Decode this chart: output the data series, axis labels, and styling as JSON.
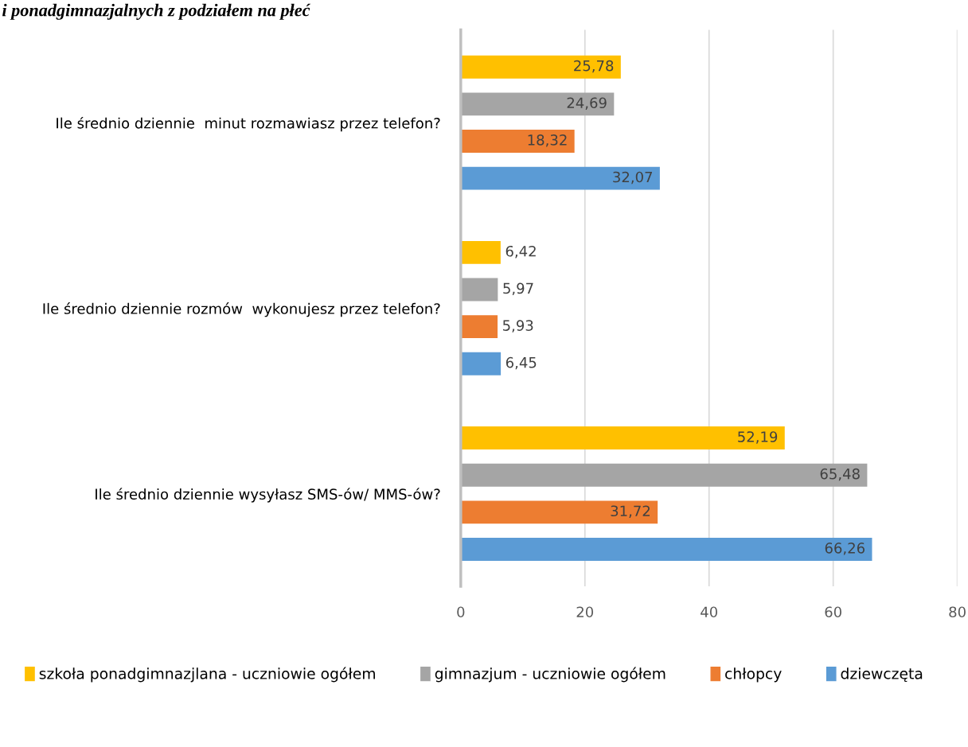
{
  "chart_data": {
    "type": "bar",
    "orientation": "horizontal",
    "title": "i ponadgimnazjalnych z podziałem na płeć",
    "categories": [
      "Ile średnio dziennie  minut rozmawiasz przez telefon?",
      "Ile średnio dziennie rozmów  wykonujesz przez telefon?",
      "Ile średnio dziennie wysyłasz SMS-ów/ MMS-ów?"
    ],
    "series": [
      {
        "name": "szkoła ponadgimnazjlana - uczniowie ogółem",
        "color": "#ffc000",
        "values": [
          25.78,
          6.42,
          52.19
        ],
        "value_labels": [
          "25,78",
          "6,42",
          "52,19"
        ]
      },
      {
        "name": "gimnazjum - uczniowie ogółem",
        "color": "#a5a5a5",
        "values": [
          24.69,
          5.97,
          65.48
        ],
        "value_labels": [
          "24,69",
          "5,97",
          "65,48"
        ]
      },
      {
        "name": "chłopcy",
        "color": "#ed7d31",
        "values": [
          18.32,
          5.93,
          31.72
        ],
        "value_labels": [
          "18,32",
          "5,93",
          "31,72"
        ]
      },
      {
        "name": "dziewczęta",
        "color": "#5b9bd5",
        "values": [
          32.07,
          6.45,
          66.26
        ],
        "value_labels": [
          "32,07",
          "6,45",
          "66,26"
        ]
      }
    ],
    "xlim": [
      0,
      80
    ],
    "xticks": [
      0,
      20,
      40,
      60,
      80
    ],
    "grid": "x",
    "legend": "bottom"
  }
}
